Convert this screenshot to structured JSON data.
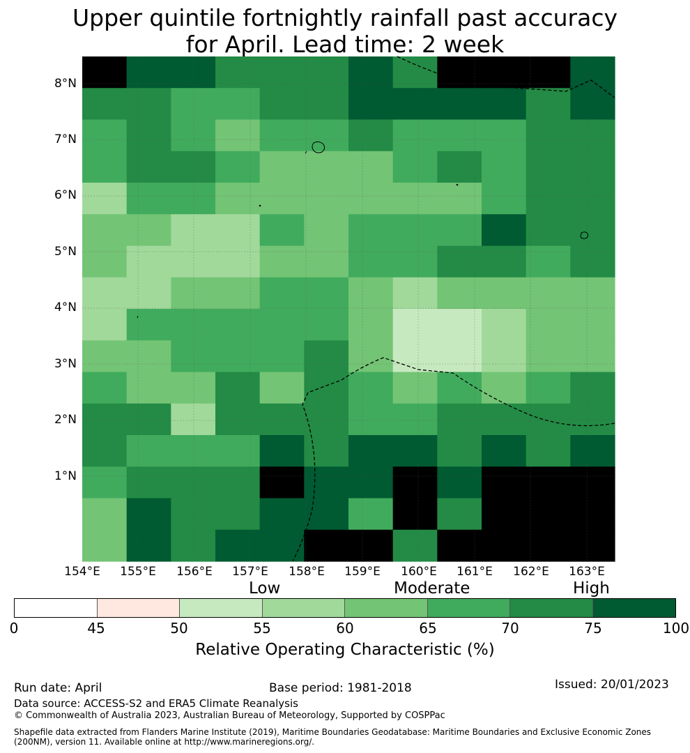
{
  "title": {
    "line1": "Upper quintile fortnightly rainfall past accuracy",
    "line2": "for April. Lead time: 2 week"
  },
  "map": {
    "lat_labels": [
      "8°N",
      "7°N",
      "6°N",
      "5°N",
      "4°N",
      "3°N",
      "2°N",
      "1°N"
    ],
    "lon_labels": [
      "154°E",
      "155°E",
      "156°E",
      "157°E",
      "158°E",
      "159°E",
      "160°E",
      "161°E",
      "162°E",
      "163°E"
    ],
    "grid": [
      [
        8,
        7,
        7,
        6,
        6,
        6,
        7,
        6,
        8,
        8,
        8,
        7
      ],
      [
        6,
        6,
        5,
        5,
        6,
        6,
        7,
        7,
        7,
        7,
        6,
        7
      ],
      [
        5,
        6,
        5,
        4,
        5,
        5,
        6,
        5,
        5,
        5,
        6,
        6
      ],
      [
        5,
        6,
        6,
        5,
        4,
        4,
        4,
        5,
        6,
        5,
        6,
        6
      ],
      [
        3,
        5,
        5,
        4,
        4,
        4,
        4,
        4,
        4,
        5,
        6,
        6
      ],
      [
        4,
        4,
        3,
        3,
        5,
        4,
        5,
        5,
        5,
        7,
        6,
        6
      ],
      [
        4,
        3,
        3,
        3,
        4,
        4,
        5,
        5,
        6,
        6,
        5,
        6
      ],
      [
        3,
        3,
        4,
        4,
        5,
        5,
        4,
        3,
        4,
        4,
        4,
        4
      ],
      [
        3,
        5,
        5,
        5,
        5,
        5,
        4,
        2,
        2,
        3,
        4,
        4
      ],
      [
        4,
        4,
        5,
        5,
        5,
        6,
        4,
        2,
        2,
        3,
        4,
        4
      ],
      [
        5,
        4,
        4,
        6,
        4,
        6,
        5,
        4,
        5,
        4,
        5,
        6
      ],
      [
        6,
        6,
        3,
        6,
        6,
        6,
        5,
        5,
        6,
        6,
        6,
        6
      ],
      [
        6,
        5,
        5,
        5,
        7,
        6,
        7,
        7,
        6,
        7,
        6,
        7
      ],
      [
        5,
        6,
        6,
        6,
        8,
        7,
        7,
        8,
        7,
        8,
        8,
        8
      ],
      [
        4,
        7,
        6,
        6,
        7,
        7,
        5,
        8,
        6,
        8,
        8,
        8
      ],
      [
        4,
        7,
        6,
        7,
        7,
        8,
        8,
        6,
        8,
        8,
        8,
        8
      ]
    ],
    "palette": [
      "#ffffff",
      "#fee8df",
      "#c7e9c0",
      "#a1d99b",
      "#74c476",
      "#41ab5d",
      "#238b45",
      "#005a32"
    ]
  },
  "colorbar": {
    "categories": [
      "Low",
      "Moderate",
      "High"
    ],
    "ticks": [
      "0",
      "45",
      "50",
      "55",
      "60",
      "65",
      "70",
      "75",
      "100"
    ],
    "colors": [
      "#ffffff",
      "#fee8df",
      "#c7e9c0",
      "#a1d99b",
      "#74c476",
      "#41ab5d",
      "#238b45",
      "#005a32"
    ],
    "label": "Relative Operating Characteristic (%)"
  },
  "footer": {
    "run_date": "Run date: April",
    "base_period": "Base period: 1981-2018",
    "issued": "Issued: 20/01/2023",
    "data_source": "Data source: ACCESS-S2 and ERA5 Climate Reanalysis",
    "copyright": "© Commonwealth of Australia 2023, Australian Bureau of Meteorology, Supported by COSPPac",
    "shapefile_line1": "Shapefile data extracted from Flanders Marine Institute (2019), Maritime Boundaries Geodatabase: Maritime Boundaries and Exclusive Economic Zones",
    "shapefile_line2": "(200NM), version 11. Available online at http://www.marineregions.org/."
  }
}
